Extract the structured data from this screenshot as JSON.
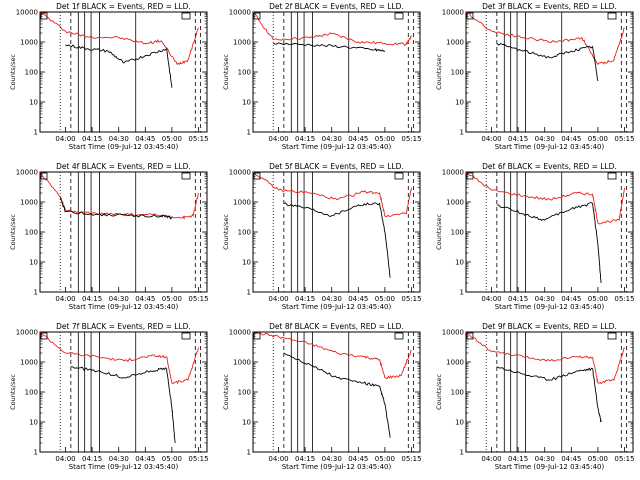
{
  "chart_data": [
    {
      "type": "line",
      "title": "Det 1f BLACK = Events, RED = LLD.",
      "xlabel": "Start Time (09-Jul-12 03:45:40)",
      "ylabel": "Counts/sec",
      "yscale": "log",
      "ylim": [
        1,
        10000
      ],
      "y_ticks": [
        "1",
        "10",
        "100",
        "1000",
        "10000"
      ],
      "x_ticks": [
        "04:00",
        "04:15",
        "04:30",
        "04:45",
        "05:00",
        "05:15"
      ],
      "series": [
        {
          "color": "red",
          "values": [
            [
              3.76,
              10000
            ],
            [
              4.0,
              2300
            ],
            [
              4.2,
              1500
            ],
            [
              4.5,
              1400
            ],
            [
              4.75,
              900
            ],
            [
              4.9,
              1100
            ],
            [
              5.05,
              180
            ],
            [
              5.15,
              250
            ],
            [
              5.25,
              3000
            ]
          ]
        },
        {
          "color": "black",
          "values": [
            [
              4.0,
              800
            ],
            [
              4.2,
              600
            ],
            [
              4.4,
              500
            ],
            [
              4.55,
              200
            ],
            [
              4.75,
              350
            ],
            [
              4.95,
              600
            ],
            [
              5.0,
              30
            ]
          ]
        }
      ]
    },
    {
      "type": "line",
      "title": "Det 2f BLACK = Events, RED = LLD.",
      "xlabel": "Start Time (09-Jul-12 03:45:40)",
      "ylabel": "Counts/sec",
      "yscale": "log",
      "ylim": [
        1,
        10000
      ],
      "y_ticks": [
        "1",
        "10",
        "100",
        "1000",
        "10000"
      ],
      "x_ticks": [
        "04:00",
        "04:15",
        "04:30",
        "04:45",
        "05:00",
        "05:15"
      ],
      "series": [
        {
          "color": "red",
          "values": [
            [
              3.76,
              10000
            ],
            [
              3.95,
              1200
            ],
            [
              4.3,
              1400
            ],
            [
              4.5,
              1900
            ],
            [
              4.75,
              1000
            ],
            [
              5.0,
              900
            ],
            [
              5.2,
              850
            ],
            [
              5.25,
              1500
            ]
          ]
        },
        {
          "color": "black",
          "values": [
            [
              3.95,
              900
            ],
            [
              4.3,
              800
            ],
            [
              4.6,
              700
            ],
            [
              4.9,
              550
            ],
            [
              5.0,
              500
            ]
          ]
        }
      ]
    },
    {
      "type": "line",
      "title": "Det 3f BLACK = Events, RED = LLD.",
      "xlabel": "Start Time (09-Jul-12 03:45:40)",
      "ylabel": "Counts/sec",
      "yscale": "log",
      "ylim": [
        1,
        10000
      ],
      "y_ticks": [
        "1",
        "10",
        "100",
        "1000",
        "10000"
      ],
      "x_ticks": [
        "04:00",
        "04:15",
        "04:30",
        "04:45",
        "05:00",
        "05:15"
      ],
      "series": [
        {
          "color": "red",
          "values": [
            [
              3.76,
              10000
            ],
            [
              4.0,
              2300
            ],
            [
              4.3,
              1400
            ],
            [
              4.6,
              1000
            ],
            [
              4.85,
              1400
            ],
            [
              5.0,
              180
            ],
            [
              5.15,
              250
            ],
            [
              5.25,
              3000
            ]
          ]
        },
        {
          "color": "black",
          "values": [
            [
              4.05,
              900
            ],
            [
              4.3,
              500
            ],
            [
              4.55,
              300
            ],
            [
              4.75,
              500
            ],
            [
              4.95,
              700
            ],
            [
              5.0,
              50
            ]
          ]
        }
      ]
    },
    {
      "type": "line",
      "title": "Det 4f BLACK = Events, RED = LLD.",
      "xlabel": "Start Time (09-Jul-12 03:45:40)",
      "ylabel": "Counts/sec",
      "yscale": "log",
      "ylim": [
        1,
        10000
      ],
      "y_ticks": [
        "1",
        "10",
        "100",
        "1000",
        "10000"
      ],
      "x_ticks": [
        "04:00",
        "04:15",
        "04:30",
        "04:45",
        "05:00",
        "05:15"
      ],
      "series": [
        {
          "color": "red",
          "values": [
            [
              3.76,
              10000
            ],
            [
              3.95,
              1500
            ],
            [
              4.0,
              500
            ],
            [
              4.3,
              400
            ],
            [
              4.6,
              380
            ],
            [
              4.9,
              360
            ],
            [
              5.1,
              300
            ],
            [
              5.2,
              350
            ],
            [
              5.25,
              2000
            ]
          ]
        },
        {
          "color": "black",
          "values": [
            [
              3.95,
              1400
            ],
            [
              4.0,
              480
            ],
            [
              4.3,
              380
            ],
            [
              4.6,
              360
            ],
            [
              4.9,
              340
            ],
            [
              5.0,
              300
            ]
          ]
        }
      ]
    },
    {
      "type": "line",
      "title": "Det 5f BLACK = Events, RED = LLD.",
      "xlabel": "Start Time (09-Jul-12 03:45:40)",
      "ylabel": "Counts/sec",
      "yscale": "log",
      "ylim": [
        1,
        10000
      ],
      "y_ticks": [
        "1",
        "10",
        "100",
        "1000",
        "10000"
      ],
      "x_ticks": [
        "04:00",
        "04:15",
        "04:30",
        "04:45",
        "05:00",
        "05:15"
      ],
      "series": [
        {
          "color": "red",
          "values": [
            [
              3.76,
              10000
            ],
            [
              4.0,
              2500
            ],
            [
              4.3,
              2000
            ],
            [
              4.55,
              1200
            ],
            [
              4.8,
              2200
            ],
            [
              4.95,
              2000
            ],
            [
              5.0,
              350
            ],
            [
              5.2,
              400
            ],
            [
              5.25,
              3000
            ]
          ]
        },
        {
          "color": "black",
          "values": [
            [
              4.05,
              900
            ],
            [
              4.3,
              600
            ],
            [
              4.5,
              350
            ],
            [
              4.75,
              800
            ],
            [
              4.95,
              900
            ],
            [
              5.0,
              100
            ],
            [
              5.05,
              3
            ]
          ]
        }
      ]
    },
    {
      "type": "line",
      "title": "Det 6f BLACK = Events, RED = LLD.",
      "xlabel": "Start Time (09-Jul-12 03:45:40)",
      "ylabel": "Counts/sec",
      "yscale": "log",
      "ylim": [
        1,
        10000
      ],
      "y_ticks": [
        "1",
        "10",
        "100",
        "1000",
        "10000"
      ],
      "x_ticks": [
        "04:00",
        "04:15",
        "04:30",
        "04:45",
        "05:00",
        "05:15"
      ],
      "series": [
        {
          "color": "red",
          "values": [
            [
              3.76,
              10000
            ],
            [
              4.0,
              2500
            ],
            [
              4.3,
              1600
            ],
            [
              4.55,
              1200
            ],
            [
              4.8,
              2000
            ],
            [
              4.95,
              1800
            ],
            [
              5.0,
              200
            ],
            [
              5.2,
              250
            ],
            [
              5.25,
              3000
            ]
          ]
        },
        {
          "color": "black",
          "values": [
            [
              4.05,
              800
            ],
            [
              4.3,
              400
            ],
            [
              4.5,
              250
            ],
            [
              4.75,
              600
            ],
            [
              4.95,
              900
            ],
            [
              5.0,
              40
            ],
            [
              5.03,
              2
            ]
          ]
        }
      ]
    },
    {
      "type": "line",
      "title": "Det 7f BLACK = Events, RED = LLD.",
      "xlabel": "Start Time (09-Jul-12 03:45:40)",
      "ylabel": "Counts/sec",
      "yscale": "log",
      "ylim": [
        1,
        10000
      ],
      "y_ticks": [
        "1",
        "10",
        "100",
        "1000",
        "10000"
      ],
      "x_ticks": [
        "04:00",
        "04:15",
        "04:30",
        "04:45",
        "05:00",
        "05:15"
      ],
      "series": [
        {
          "color": "red",
          "values": [
            [
              3.76,
              10000
            ],
            [
              4.0,
              2000
            ],
            [
              4.3,
              1500
            ],
            [
              4.55,
              1100
            ],
            [
              4.8,
              1600
            ],
            [
              4.95,
              1500
            ],
            [
              5.0,
              200
            ],
            [
              5.15,
              250
            ],
            [
              5.25,
              3000
            ]
          ]
        },
        {
          "color": "black",
          "values": [
            [
              4.05,
              700
            ],
            [
              4.3,
              500
            ],
            [
              4.55,
              300
            ],
            [
              4.8,
              500
            ],
            [
              4.95,
              600
            ],
            [
              5.0,
              30
            ],
            [
              5.03,
              2
            ]
          ]
        }
      ]
    },
    {
      "type": "line",
      "title": "Det 8f BLACK = Events, RED = LLD.",
      "xlabel": "Start Time (09-Jul-12 03:45:40)",
      "ylabel": "Counts/sec",
      "yscale": "log",
      "ylim": [
        1,
        10000
      ],
      "y_ticks": [
        "1",
        "10",
        "100",
        "1000",
        "10000"
      ],
      "x_ticks": [
        "04:00",
        "04:15",
        "04:30",
        "04:45",
        "05:00",
        "05:15"
      ],
      "series": [
        {
          "color": "red",
          "values": [
            [
              3.76,
              10000
            ],
            [
              4.0,
              7000
            ],
            [
              4.3,
              4000
            ],
            [
              4.55,
              2000
            ],
            [
              4.8,
              1500
            ],
            [
              4.95,
              1200
            ],
            [
              5.0,
              300
            ],
            [
              5.15,
              350
            ],
            [
              5.25,
              2500
            ]
          ]
        },
        {
          "color": "black",
          "values": [
            [
              4.05,
              2000
            ],
            [
              4.3,
              800
            ],
            [
              4.55,
              300
            ],
            [
              4.8,
              200
            ],
            [
              4.95,
              150
            ],
            [
              5.0,
              40
            ],
            [
              5.05,
              3
            ]
          ]
        }
      ]
    },
    {
      "type": "line",
      "title": "Det 9f BLACK = Events, RED = LLD.",
      "xlabel": "Start Time (09-Jul-12 03:45:40)",
      "ylabel": "Counts/sec",
      "yscale": "log",
      "ylim": [
        1,
        10000
      ],
      "y_ticks": [
        "1",
        "10",
        "100",
        "1000",
        "10000"
      ],
      "x_ticks": [
        "04:00",
        "04:15",
        "04:30",
        "04:45",
        "05:00",
        "05:15"
      ],
      "series": [
        {
          "color": "red",
          "values": [
            [
              3.76,
              10000
            ],
            [
              4.0,
              2200
            ],
            [
              4.3,
              1500
            ],
            [
              4.55,
              1100
            ],
            [
              4.8,
              1500
            ],
            [
              4.95,
              1400
            ],
            [
              5.0,
              200
            ],
            [
              5.15,
              250
            ],
            [
              5.25,
              3000
            ]
          ]
        },
        {
          "color": "black",
          "values": [
            [
              4.05,
              700
            ],
            [
              4.3,
              400
            ],
            [
              4.55,
              250
            ],
            [
              4.8,
              500
            ],
            [
              4.95,
              600
            ],
            [
              5.0,
              30
            ],
            [
              5.03,
              10
            ]
          ]
        }
      ]
    }
  ]
}
